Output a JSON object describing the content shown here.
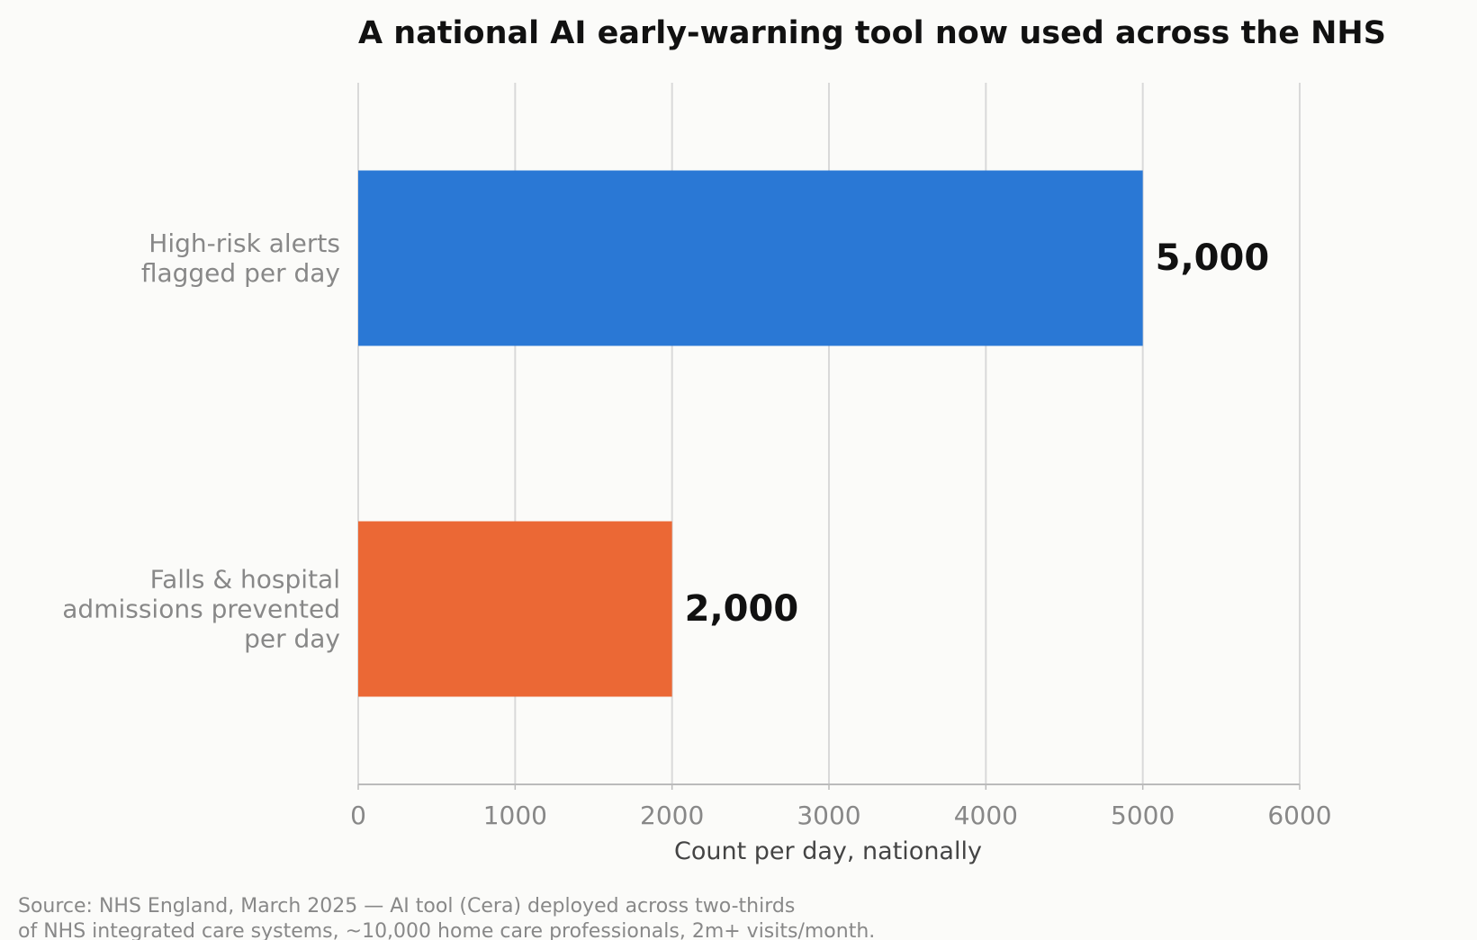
{
  "chart_data": {
    "type": "bar",
    "orientation": "horizontal",
    "title": "A national AI early-warning tool now used across the NHS",
    "categories": [
      [
        "High-risk alerts",
        "flagged per day"
      ],
      [
        "Falls & hospital",
        "admissions prevented",
        "per day"
      ]
    ],
    "values": [
      5000,
      2000
    ],
    "value_labels": [
      "5,000",
      "2,000"
    ],
    "colors": [
      "#2a78d5",
      "#eb6835"
    ],
    "xlabel": "Count per day, nationally",
    "ylabel": "",
    "xlim": [
      0,
      6000
    ],
    "xticks": [
      0,
      1000,
      2000,
      3000,
      4000,
      5000,
      6000
    ],
    "xtick_labels": [
      "0",
      "1000",
      "2000",
      "3000",
      "4000",
      "5000",
      "6000"
    ],
    "grid": "vertical",
    "source": [
      "Source: NHS England, March 2025 — AI tool (Cera) deployed across two-thirds",
      "of NHS integrated care systems, ~10,000 home care professionals, 2m+ visits/month."
    ]
  }
}
